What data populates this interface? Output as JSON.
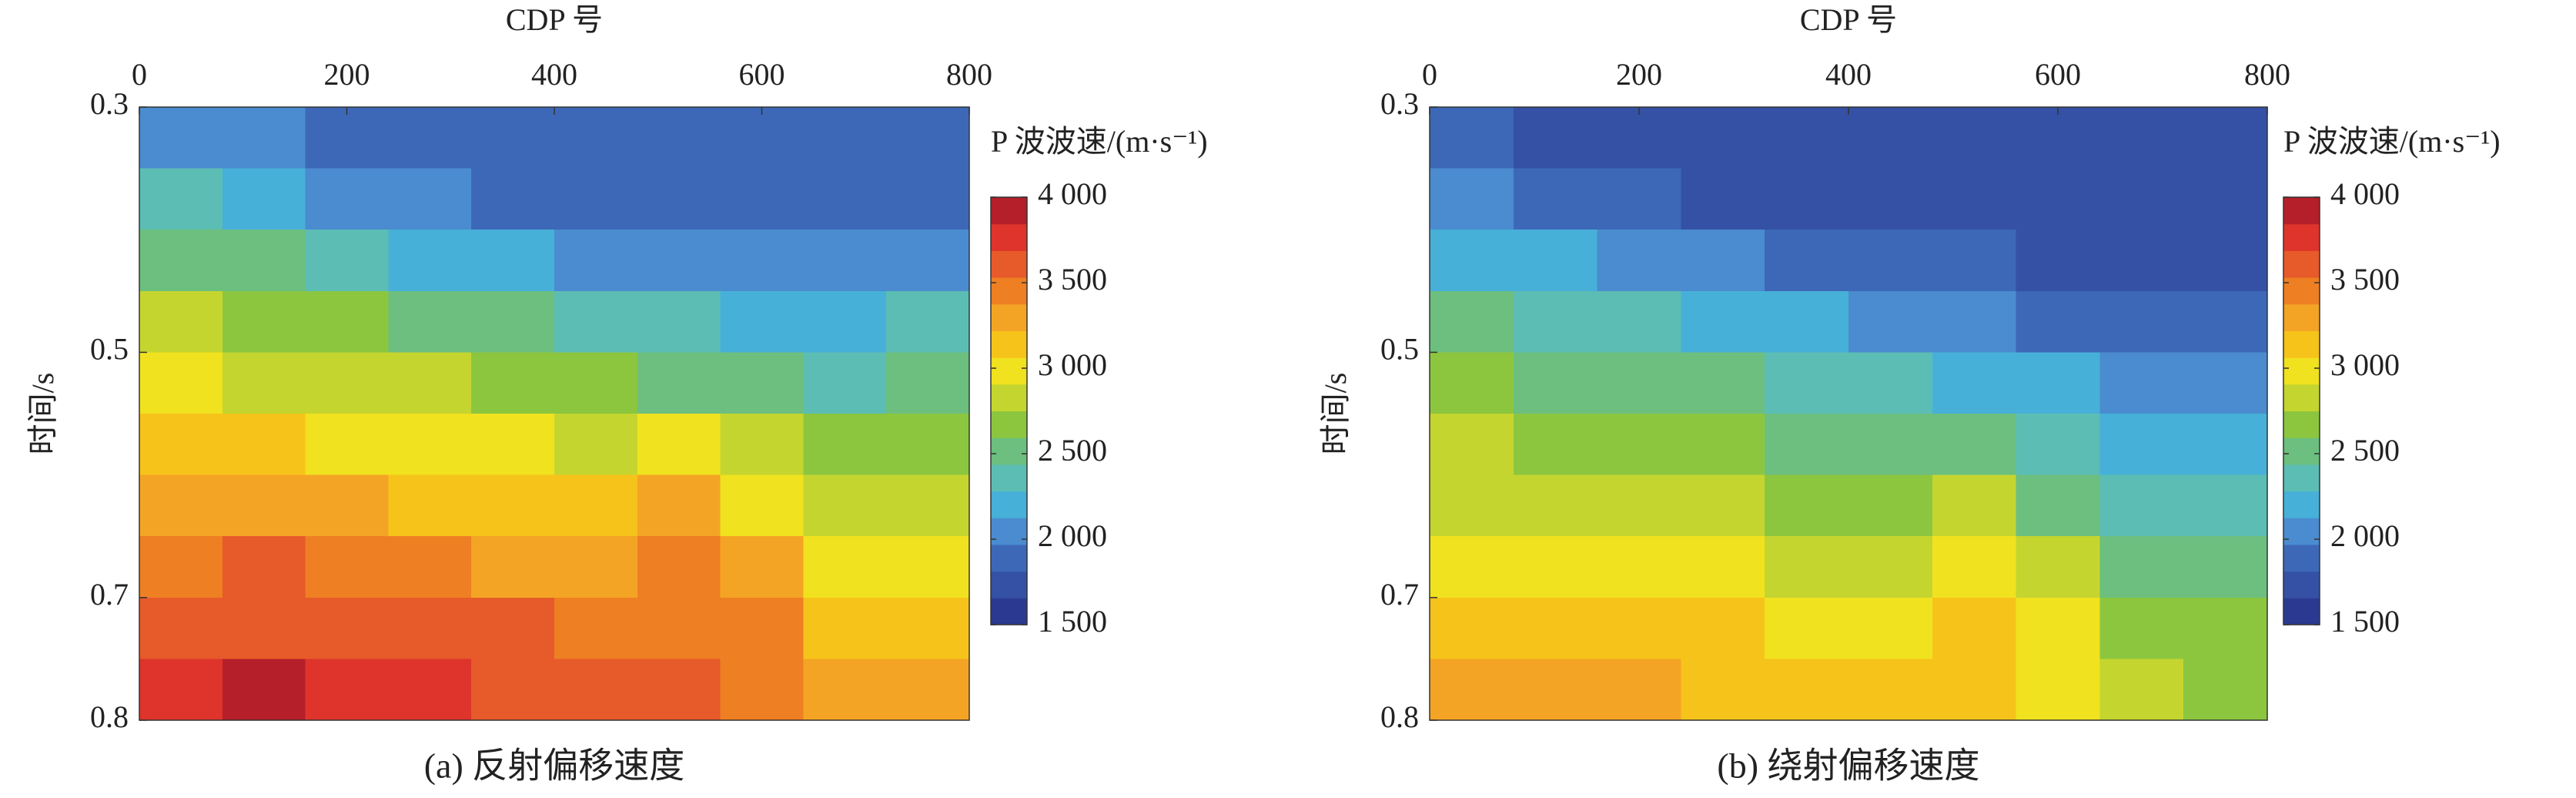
{
  "chart_data": [
    {
      "type": "heatmap",
      "xlabel": "CDP 号",
      "ylabel": "时间/s",
      "caption": "(a) 反射偏移速度",
      "xlim": [
        0,
        800
      ],
      "xticks": [
        0,
        200,
        400,
        600,
        800
      ],
      "x_axis_position": "top",
      "ylim": [
        0.3,
        0.8
      ],
      "yticks": [
        0.3,
        0.5,
        0.7,
        0.8
      ],
      "y_inverted": true,
      "x": [
        40,
        120,
        200,
        280,
        360,
        440,
        520,
        600,
        680,
        760
      ],
      "y": [
        0.325,
        0.375,
        0.425,
        0.475,
        0.525,
        0.575,
        0.625,
        0.675,
        0.725,
        0.775
      ],
      "z": [
        [
          2050,
          2000,
          1950,
          1950,
          1950,
          1950,
          1950,
          1950,
          1950,
          1950
        ],
        [
          2300,
          2150,
          2050,
          2000,
          1950,
          1950,
          1950,
          1950,
          1950,
          1950
        ],
        [
          2550,
          2450,
          2350,
          2250,
          2150,
          2100,
          2050,
          2050,
          2000,
          2050
        ],
        [
          2750,
          2650,
          2600,
          2550,
          2450,
          2400,
          2300,
          2250,
          2250,
          2300
        ],
        [
          2950,
          2900,
          2800,
          2750,
          2650,
          2600,
          2550,
          2450,
          2400,
          2450
        ],
        [
          3150,
          3100,
          3050,
          3000,
          2950,
          2900,
          3000,
          2800,
          2600,
          2600
        ],
        [
          3350,
          3300,
          3250,
          3200,
          3150,
          3150,
          3300,
          3050,
          2800,
          2800
        ],
        [
          3500,
          3550,
          3500,
          3400,
          3350,
          3350,
          3450,
          3250,
          3000,
          2950
        ],
        [
          3600,
          3650,
          3650,
          3600,
          3550,
          3500,
          3500,
          3400,
          3150,
          3100
        ],
        [
          3800,
          3850,
          3800,
          3700,
          3650,
          3650,
          3600,
          3500,
          3300,
          3250
        ]
      ],
      "colorbar": {
        "label": "P 波波速/(m·s⁻¹)",
        "lim": [
          1500,
          4000
        ],
        "ticks": [
          {
            "value": 1500,
            "label": "1 500"
          },
          {
            "value": 2000,
            "label": "2 000"
          },
          {
            "value": 2500,
            "label": "2 500"
          },
          {
            "value": 3000,
            "label": "3 000"
          },
          {
            "value": 3500,
            "label": "3 500"
          },
          {
            "value": 4000,
            "label": "4 000"
          }
        ]
      },
      "colormap": [
        "#2b3990",
        "#3451a5",
        "#3d68b8",
        "#4a8ccf",
        "#47b0d8",
        "#5cbdb4",
        "#6cbf7e",
        "#8cc63f",
        "#c5d52f",
        "#f0e21e",
        "#f6c31b",
        "#f4a424",
        "#ee7f23",
        "#e75a2a",
        "#de342b",
        "#b41f2a"
      ]
    },
    {
      "type": "heatmap",
      "xlabel": "CDP 号",
      "ylabel": "时间/s",
      "caption": "(b) 绕射偏移速度",
      "xlim": [
        0,
        800
      ],
      "xticks": [
        0,
        200,
        400,
        600,
        800
      ],
      "x_axis_position": "top",
      "ylim": [
        0.3,
        0.8
      ],
      "yticks": [
        0.3,
        0.5,
        0.7,
        0.8
      ],
      "y_inverted": true,
      "x": [
        40,
        120,
        200,
        280,
        360,
        440,
        520,
        600,
        680,
        760
      ],
      "y": [
        0.325,
        0.375,
        0.425,
        0.475,
        0.525,
        0.575,
        0.625,
        0.675,
        0.725,
        0.775
      ],
      "z": [
        [
          1900,
          1800,
          1750,
          1750,
          1750,
          1750,
          1750,
          1750,
          1750,
          1750
        ],
        [
          2000,
          1900,
          1850,
          1800,
          1800,
          1750,
          1750,
          1750,
          1750,
          1750
        ],
        [
          2250,
          2150,
          2050,
          2000,
          1950,
          1900,
          1850,
          1800,
          1800,
          1800
        ],
        [
          2450,
          2400,
          2300,
          2250,
          2150,
          2100,
          2000,
          1950,
          1900,
          1900
        ],
        [
          2600,
          2550,
          2500,
          2450,
          2400,
          2300,
          2250,
          2150,
          2050,
          2050
        ],
        [
          2750,
          2700,
          2650,
          2600,
          2550,
          2550,
          2500,
          2400,
          2250,
          2200
        ],
        [
          2900,
          2850,
          2800,
          2750,
          2700,
          2650,
          2750,
          2550,
          2400,
          2350
        ],
        [
          3050,
          3050,
          3000,
          2950,
          2850,
          2850,
          2950,
          2750,
          2550,
          2450
        ],
        [
          3200,
          3200,
          3150,
          3100,
          3000,
          3000,
          3100,
          2950,
          2650,
          2600
        ],
        [
          3300,
          3350,
          3300,
          3200,
          3150,
          3100,
          3150,
          3050,
          2750,
          2700
        ]
      ],
      "colorbar": {
        "label": "P 波波速/(m·s⁻¹)",
        "lim": [
          1500,
          4000
        ],
        "ticks": [
          {
            "value": 1500,
            "label": "1 500"
          },
          {
            "value": 2000,
            "label": "2 000"
          },
          {
            "value": 2500,
            "label": "2 500"
          },
          {
            "value": 3000,
            "label": "3 000"
          },
          {
            "value": 3500,
            "label": "3 500"
          },
          {
            "value": 4000,
            "label": "4 000"
          }
        ]
      },
      "colormap": [
        "#2b3990",
        "#3451a5",
        "#3d68b8",
        "#4a8ccf",
        "#47b0d8",
        "#5cbdb4",
        "#6cbf7e",
        "#8cc63f",
        "#c5d52f",
        "#f0e21e",
        "#f6c31b",
        "#f4a424",
        "#ee7f23",
        "#e75a2a",
        "#de342b",
        "#b41f2a"
      ]
    }
  ]
}
